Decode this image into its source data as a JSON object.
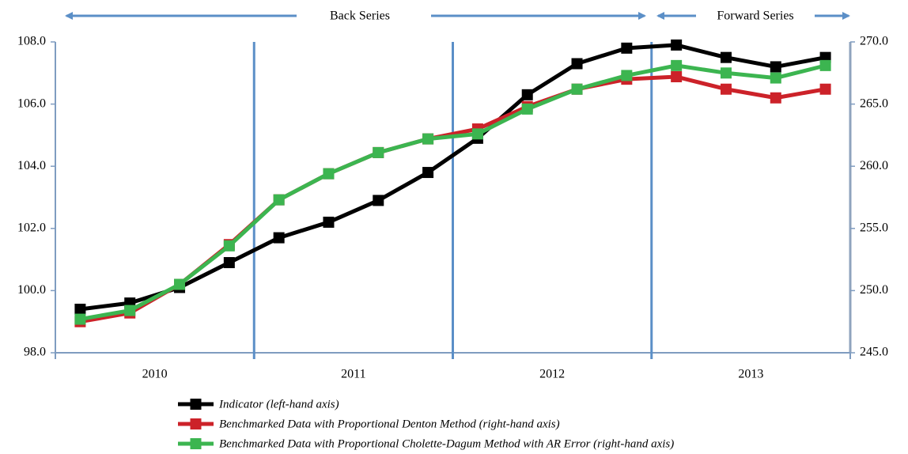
{
  "chart_data": {
    "type": "line",
    "annotations": [
      "Back Series",
      "Forward Series"
    ],
    "categories": [
      null,
      null,
      null,
      null,
      null,
      null,
      null,
      null,
      null,
      null,
      null,
      null,
      null,
      null,
      null,
      null
    ],
    "category_groups": [
      "2010",
      "2011",
      "2012",
      "2013"
    ],
    "ylim": [
      98,
      108
    ],
    "yticks": [
      {
        "value": 98,
        "label": "98.0"
      },
      {
        "value": 100,
        "label": "100.0"
      },
      {
        "value": 102,
        "label": "102.0"
      },
      {
        "value": 104,
        "label": "104.0"
      },
      {
        "value": 106,
        "label": "106.0"
      },
      {
        "value": 108,
        "label": "108.0"
      }
    ],
    "y2lim": [
      245,
      270
    ],
    "y2ticks": [
      {
        "value": 245,
        "label": "245.0"
      },
      {
        "value": 250,
        "label": "250.0"
      },
      {
        "value": 255,
        "label": "255.0"
      },
      {
        "value": 260,
        "label": "260.0"
      },
      {
        "value": 265,
        "label": "265.0"
      },
      {
        "value": 270,
        "label": "270.0"
      }
    ],
    "series": [
      {
        "name": "Indicator (left-hand axis)",
        "color": "#000000",
        "axis": "y",
        "values": [
          99.4,
          99.6,
          100.1,
          100.9,
          101.7,
          102.2,
          102.9,
          103.8,
          104.9,
          106.3,
          107.3,
          107.8,
          107.9,
          107.5,
          107.2,
          107.5
        ]
      },
      {
        "name": "Benchmarked Data with Proportional Denton Method (right-hand axis)",
        "color": "#cc2229",
        "axis": "y2",
        "values": [
          247.5,
          248.2,
          250.5,
          253.7,
          257.3,
          259.4,
          261.1,
          262.2,
          263.0,
          264.8,
          266.2,
          267.0,
          267.2,
          266.2,
          265.5,
          266.2
        ]
      },
      {
        "name": "Benchmarked Data with Proportional Cholette-Dagum  Method with AR Error (right-hand axis)",
        "color": "#3cb550",
        "axis": "y2",
        "values": [
          247.7,
          248.4,
          250.5,
          253.6,
          257.3,
          259.4,
          261.1,
          262.2,
          262.6,
          264.6,
          266.2,
          267.3,
          268.1,
          267.5,
          267.1,
          268.1
        ]
      }
    ]
  }
}
